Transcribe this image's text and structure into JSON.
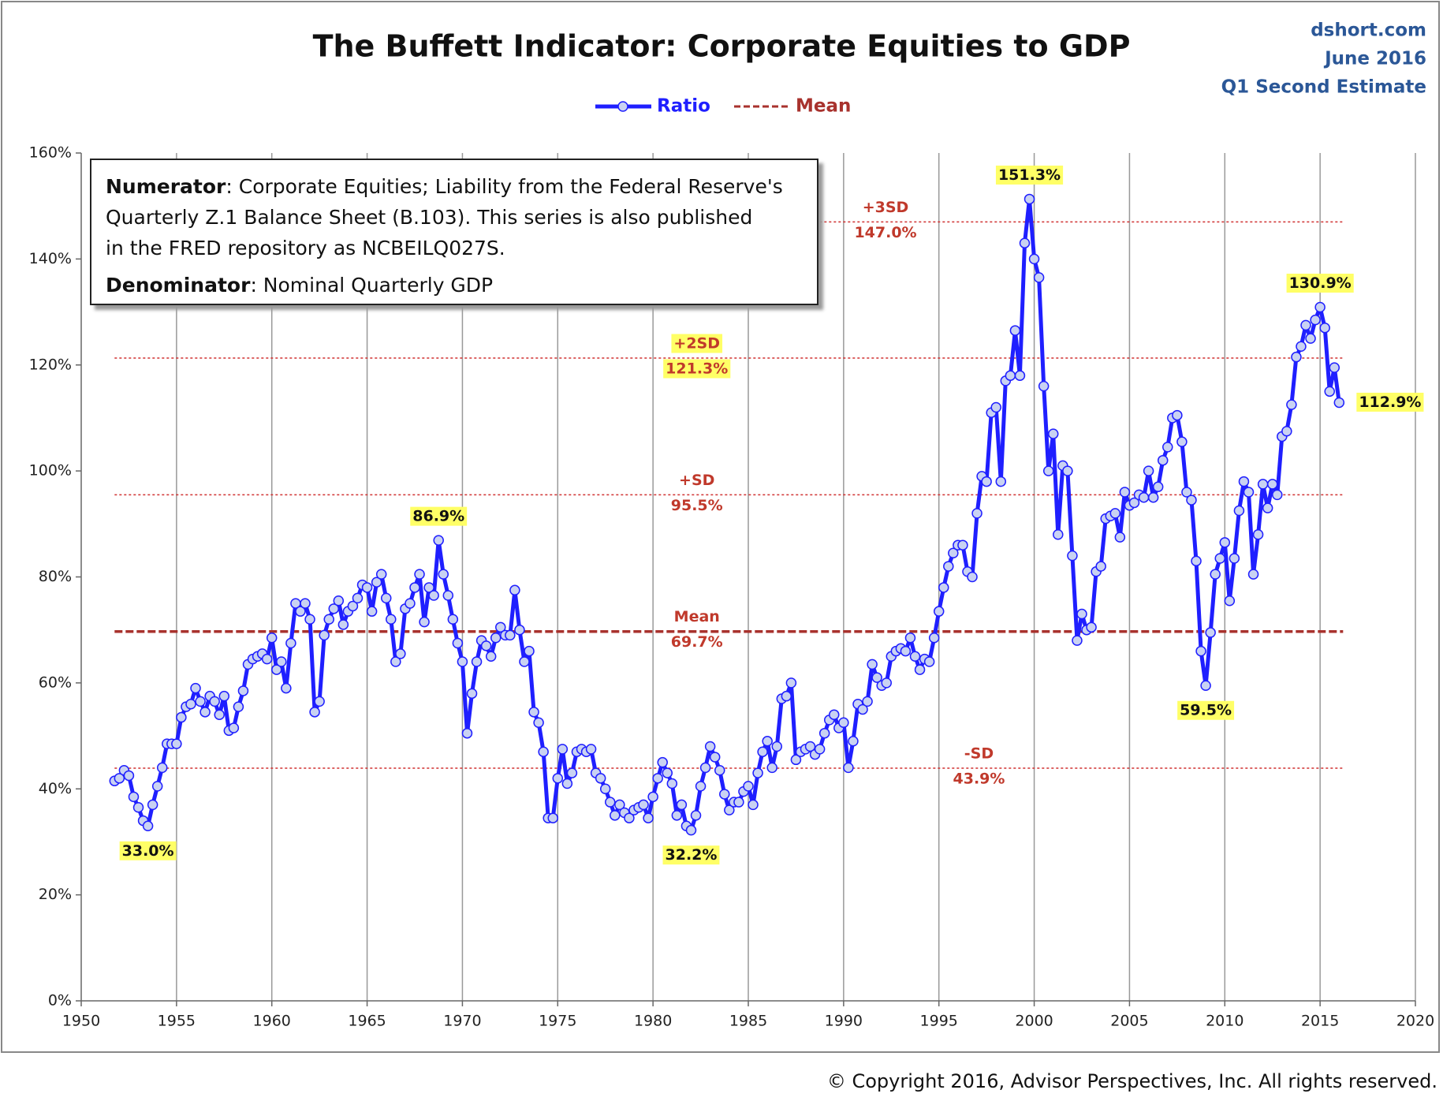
{
  "chart_data": {
    "type": "line",
    "title": "The Buffett Indicator: Corporate Equities to GDP",
    "source_lines": [
      "dshort.com",
      "June 2016",
      "Q1 Second Estimate"
    ],
    "copyright": "© Copyright 2016, Advisor Perspectives, Inc. All rights reserved.",
    "note": [
      {
        "label": "Numerator",
        "lines": [
          ": Corporate Equities; Liability from the Federal Reserve's",
          "Quarterly Z.1 Balance Sheet (B.103). This series is also published",
          "in the FRED repository as NCBEILQ027S."
        ]
      },
      {
        "label": "Denominator",
        "lines": [
          ": Nominal Quarterly GDP"
        ]
      }
    ],
    "xlim": [
      1950,
      2020
    ],
    "xticks": [
      1950,
      1955,
      1960,
      1965,
      1970,
      1975,
      1980,
      1985,
      1990,
      1995,
      2000,
      2005,
      2010,
      2015,
      2020
    ],
    "ylim": [
      0,
      160
    ],
    "yticks": [
      {
        "value": 0,
        "label": "0%"
      },
      {
        "value": 20,
        "label": "20%"
      },
      {
        "value": 40,
        "label": "40%"
      },
      {
        "value": 60,
        "label": "60%"
      },
      {
        "value": 80,
        "label": "80%"
      },
      {
        "value": 100,
        "label": "100%"
      },
      {
        "value": 120,
        "label": "120%"
      },
      {
        "value": 140,
        "label": "140%"
      },
      {
        "value": 160,
        "label": "160%"
      }
    ],
    "grid": "x",
    "x": [
      1951.75,
      1952,
      1952.25,
      1952.5,
      1952.75,
      1953,
      1953.25,
      1953.5,
      1953.75,
      1954,
      1954.25,
      1954.5,
      1954.75,
      1955,
      1955.25,
      1955.5,
      1955.75,
      1956,
      1956.25,
      1956.5,
      1956.75,
      1957,
      1957.25,
      1957.5,
      1957.75,
      1958,
      1958.25,
      1958.5,
      1958.75,
      1959,
      1959.25,
      1959.5,
      1959.75,
      1960,
      1960.25,
      1960.5,
      1960.75,
      1961,
      1961.25,
      1961.5,
      1961.75,
      1962,
      1962.25,
      1962.5,
      1962.75,
      1963,
      1963.25,
      1963.5,
      1963.75,
      1964,
      1964.25,
      1964.5,
      1964.75,
      1965,
      1965.25,
      1965.5,
      1965.75,
      1966,
      1966.25,
      1966.5,
      1966.75,
      1967,
      1967.25,
      1967.5,
      1967.75,
      1968,
      1968.25,
      1968.5,
      1968.75,
      1969,
      1969.25,
      1969.5,
      1969.75,
      1970,
      1970.25,
      1970.5,
      1970.75,
      1971,
      1971.25,
      1971.5,
      1971.75,
      1972,
      1972.25,
      1972.5,
      1972.75,
      1973,
      1973.25,
      1973.5,
      1973.75,
      1974,
      1974.25,
      1974.5,
      1974.75,
      1975,
      1975.25,
      1975.5,
      1975.75,
      1976,
      1976.25,
      1976.5,
      1976.75,
      1977,
      1977.25,
      1977.5,
      1977.75,
      1978,
      1978.25,
      1978.5,
      1978.75,
      1979,
      1979.25,
      1979.5,
      1979.75,
      1980,
      1980.25,
      1980.5,
      1980.75,
      1981,
      1981.25,
      1981.5,
      1981.75,
      1982,
      1982.25,
      1982.5,
      1982.75,
      1983,
      1983.25,
      1983.5,
      1983.75,
      1984,
      1984.25,
      1984.5,
      1984.75,
      1985,
      1985.25,
      1985.5,
      1985.75,
      1986,
      1986.25,
      1986.5,
      1986.75,
      1987,
      1987.25,
      1987.5,
      1987.75,
      1988,
      1988.25,
      1988.5,
      1988.75,
      1989,
      1989.25,
      1989.5,
      1989.75,
      1990,
      1990.25,
      1990.5,
      1990.75,
      1991,
      1991.25,
      1991.5,
      1991.75,
      1992,
      1992.25,
      1992.5,
      1992.75,
      1993,
      1993.25,
      1993.5,
      1993.75,
      1994,
      1994.25,
      1994.5,
      1994.75,
      1995,
      1995.25,
      1995.5,
      1995.75,
      1996,
      1996.25,
      1996.5,
      1996.75,
      1997,
      1997.25,
      1997.5,
      1997.75,
      1998,
      1998.25,
      1998.5,
      1998.75,
      1999,
      1999.25,
      1999.5,
      1999.75,
      2000,
      2000.25,
      2000.5,
      2000.75,
      2001,
      2001.25,
      2001.5,
      2001.75,
      2002,
      2002.25,
      2002.5,
      2002.75,
      2003,
      2003.25,
      2003.5,
      2003.75,
      2004,
      2004.25,
      2004.5,
      2004.75,
      2005,
      2005.25,
      2005.5,
      2005.75,
      2006,
      2006.25,
      2006.5,
      2006.75,
      2007,
      2007.25,
      2007.5,
      2007.75,
      2008,
      2008.25,
      2008.5,
      2008.75,
      2009,
      2009.25,
      2009.5,
      2009.75,
      2010,
      2010.25,
      2010.5,
      2010.75,
      2011,
      2011.25,
      2011.5,
      2011.75,
      2012,
      2012.25,
      2012.5,
      2012.75,
      2013,
      2013.25,
      2013.5,
      2013.75,
      2014,
      2014.25,
      2014.5,
      2014.75,
      2015,
      2015.25,
      2015.5,
      2015.75,
      2016
    ],
    "series": [
      {
        "name": "Ratio",
        "color": "#1f1fff",
        "marker_fill": "#c9d2f2",
        "values": [
          41.5,
          42,
          43.5,
          42.5,
          38.5,
          36.5,
          34,
          33,
          37,
          40.5,
          44,
          48.5,
          48.5,
          48.5,
          53.5,
          55.5,
          56,
          59,
          56.5,
          54.5,
          57.5,
          56.5,
          54,
          57.5,
          51,
          51.5,
          55.5,
          58.5,
          63.5,
          64.5,
          65,
          65.5,
          64.5,
          68.5,
          62.5,
          64,
          59,
          67.5,
          75,
          73.5,
          75,
          72,
          54.5,
          56.5,
          69,
          72,
          74,
          75.5,
          71,
          73.5,
          74.5,
          76,
          78.5,
          78,
          73.5,
          79,
          80.5,
          76,
          72,
          64,
          65.5,
          74,
          75,
          78,
          80.5,
          71.5,
          78,
          76.5,
          86.9,
          80.5,
          76.5,
          72,
          67.5,
          64,
          50.5,
          58,
          64,
          68,
          67,
          65,
          68.5,
          70.5,
          69,
          69,
          77.5,
          70,
          64,
          66,
          54.5,
          52.5,
          47,
          34.5,
          34.5,
          42,
          47.5,
          41,
          43,
          47,
          47.5,
          47,
          47.5,
          43,
          42,
          40,
          37.5,
          35,
          37,
          35.5,
          34.5,
          36,
          36.5,
          37,
          34.5,
          38.5,
          42,
          45,
          43,
          41,
          35,
          37,
          33,
          32.2,
          35,
          40.5,
          44,
          48,
          46,
          43.5,
          39,
          36,
          37.5,
          37.5,
          39.5,
          40.5,
          37,
          43,
          47,
          49,
          44,
          48,
          57,
          57.5,
          60,
          45.5,
          47,
          47.5,
          48,
          46.5,
          47.5,
          50.5,
          53,
          54,
          51.5,
          52.5,
          44,
          49,
          56,
          55,
          56.5,
          63.5,
          61,
          59.5,
          60,
          65,
          66,
          66.5,
          66,
          68.5,
          65,
          62.5,
          64.5,
          64,
          68.5,
          73.5,
          78,
          82,
          84.5,
          86,
          86,
          81,
          80,
          92,
          99,
          98,
          111,
          112,
          98,
          117,
          118,
          126.5,
          118,
          143,
          151.3,
          140,
          136.5,
          116,
          100,
          107,
          88,
          101,
          100,
          84,
          68,
          73,
          70,
          70.5,
          81,
          82,
          91,
          91.5,
          92,
          87.5,
          96,
          93.5,
          94,
          95.5,
          95,
          100,
          95,
          97,
          102,
          104.5,
          110,
          110.5,
          105.5,
          96,
          94.5,
          83,
          66,
          59.5,
          69.5,
          80.5,
          83.5,
          86.5,
          75.5,
          83.5,
          92.5,
          98,
          96,
          80.5,
          88,
          97.5,
          93,
          97.5,
          95.5,
          106.5,
          107.5,
          112.5,
          121.5,
          123.5,
          127.5,
          125,
          128.5,
          130.9,
          127,
          115,
          119.5,
          112.9
        ]
      }
    ],
    "reference_lines": [
      {
        "name": "Mean",
        "value": 69.7,
        "value_label": "69.7%",
        "color": "#a8322d",
        "style": "dashed",
        "legend": true
      },
      {
        "name": "+SD",
        "value": 95.5,
        "value_label": "95.5%",
        "color": "#d03030",
        "style": "dotted"
      },
      {
        "name": "+2SD",
        "value": 121.3,
        "value_label": "121.3%",
        "color": "#d03030",
        "style": "dotted",
        "highlight": true
      },
      {
        "name": "+3SD",
        "value": 147.0,
        "value_label": "147.0%",
        "color": "#d03030",
        "style": "dotted"
      },
      {
        "name": "-SD",
        "value": 43.9,
        "value_label": "43.9%",
        "color": "#d03030",
        "style": "dotted"
      }
    ],
    "annotations": [
      {
        "x": 1953.5,
        "value": 33.0,
        "label": "33.0%",
        "position": "below"
      },
      {
        "x": 1968.75,
        "value": 86.9,
        "label": "86.9%",
        "position": "above"
      },
      {
        "x": 1982,
        "value": 32.2,
        "label": "32.2%",
        "position": "below"
      },
      {
        "x": 1999.75,
        "value": 151.3,
        "label": "151.3%",
        "position": "above"
      },
      {
        "x": 2009,
        "value": 59.5,
        "label": "59.5%",
        "position": "below"
      },
      {
        "x": 2015,
        "value": 130.9,
        "label": "130.9%",
        "position": "above"
      },
      {
        "x": 2016,
        "value": 112.9,
        "label": "112.9%",
        "position": "right"
      }
    ]
  }
}
